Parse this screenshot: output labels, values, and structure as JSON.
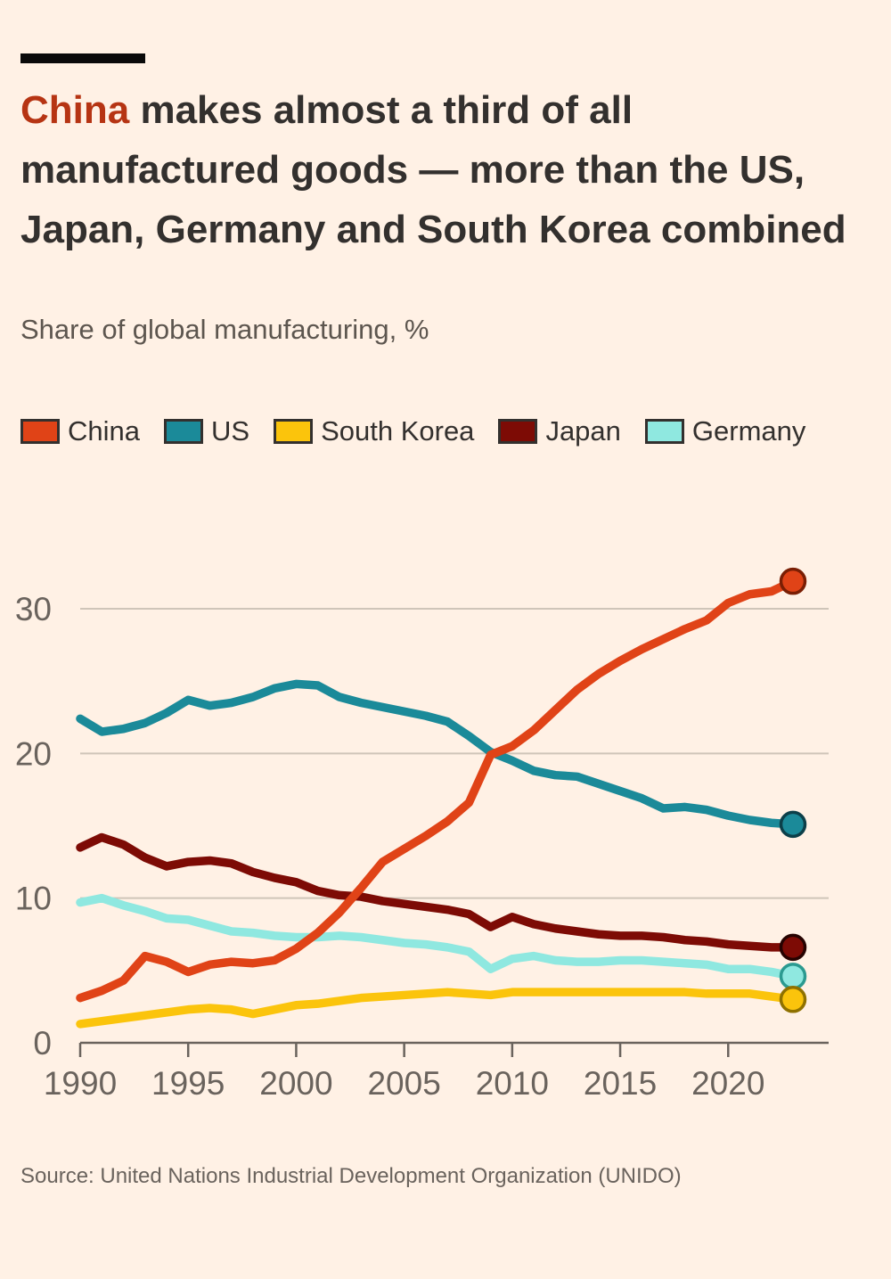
{
  "header": {
    "title_accent": "China",
    "title_rest": " makes almost a third of all manufactured goods — more than the US, Japan, Germany and South Korea combined",
    "subtitle": "Share of global manufacturing, %"
  },
  "footer": {
    "source": "Source: United Nations Industrial Development Organization (UNIDO)"
  },
  "colors": {
    "background": "#FFF1E5",
    "title_text": "#33302E",
    "title_accent": "#B63413",
    "subtitle_text": "#5D564F",
    "axis_text": "#6A635D",
    "gridline": "#CFC5B9",
    "axis_line": "#6A635D",
    "accent_bar": "#0A0A0A"
  },
  "chart_data": {
    "type": "line",
    "title": "China makes almost a third of all manufactured goods — more than the US, Japan, Germany and South Korea combined",
    "ylabel": "Share of global manufacturing, %",
    "xlabel": "",
    "xlim": [
      1990,
      2023
    ],
    "ylim": [
      0,
      33
    ],
    "grid": "horizontal",
    "legend_position": "top",
    "end_markers": true,
    "x_ticks": [
      1990,
      1995,
      2000,
      2005,
      2010,
      2015,
      2020
    ],
    "y_ticks": [
      0,
      10,
      20,
      30
    ],
    "x": [
      1990,
      1991,
      1992,
      1993,
      1994,
      1995,
      1996,
      1997,
      1998,
      1999,
      2000,
      2001,
      2002,
      2003,
      2004,
      2005,
      2006,
      2007,
      2008,
      2009,
      2010,
      2011,
      2012,
      2013,
      2014,
      2015,
      2016,
      2017,
      2018,
      2019,
      2020,
      2021,
      2022,
      2023
    ],
    "legend_order": [
      "China",
      "US",
      "South Korea",
      "Japan",
      "Germany"
    ],
    "series": [
      {
        "name": "Germany",
        "color": "#8FE8E0",
        "ring": "#2B9A90",
        "values": [
          9.7,
          10.0,
          9.5,
          9.1,
          8.6,
          8.5,
          8.1,
          7.7,
          7.6,
          7.4,
          7.3,
          7.3,
          7.4,
          7.3,
          7.1,
          6.9,
          6.8,
          6.6,
          6.3,
          5.1,
          5.8,
          6.0,
          5.7,
          5.6,
          5.6,
          5.7,
          5.7,
          5.6,
          5.5,
          5.4,
          5.1,
          5.1,
          4.9,
          4.6
        ]
      },
      {
        "name": "South Korea",
        "color": "#FBC40C",
        "ring": "#8F7100",
        "values": [
          1.3,
          1.5,
          1.7,
          1.9,
          2.1,
          2.3,
          2.4,
          2.3,
          2.0,
          2.3,
          2.6,
          2.7,
          2.9,
          3.1,
          3.2,
          3.3,
          3.4,
          3.5,
          3.4,
          3.3,
          3.5,
          3.5,
          3.5,
          3.5,
          3.5,
          3.5,
          3.5,
          3.5,
          3.5,
          3.4,
          3.4,
          3.4,
          3.2,
          3.0
        ]
      },
      {
        "name": "Japan",
        "color": "#7D0B05",
        "ring": "#260301",
        "values": [
          13.5,
          14.2,
          13.7,
          12.8,
          12.2,
          12.5,
          12.6,
          12.4,
          11.8,
          11.4,
          11.1,
          10.5,
          10.2,
          10.1,
          9.8,
          9.6,
          9.4,
          9.2,
          8.9,
          8.0,
          8.7,
          8.2,
          7.9,
          7.7,
          7.5,
          7.4,
          7.4,
          7.3,
          7.1,
          7.0,
          6.8,
          6.7,
          6.6,
          6.6
        ]
      },
      {
        "name": "US",
        "color": "#1B8A99",
        "ring": "#0C3F49",
        "values": [
          22.4,
          21.5,
          21.7,
          22.1,
          22.8,
          23.7,
          23.3,
          23.5,
          23.9,
          24.5,
          24.8,
          24.7,
          23.9,
          23.5,
          23.2,
          22.9,
          22.6,
          22.2,
          21.2,
          20.1,
          19.5,
          18.8,
          18.5,
          18.4,
          17.9,
          17.4,
          16.9,
          16.2,
          16.3,
          16.1,
          15.7,
          15.4,
          15.2,
          15.1
        ]
      },
      {
        "name": "China",
        "color": "#E04317",
        "ring": "#7A1E04",
        "values": [
          3.1,
          3.6,
          4.3,
          6.0,
          5.6,
          4.9,
          5.4,
          5.6,
          5.5,
          5.7,
          6.5,
          7.6,
          9.0,
          10.7,
          12.5,
          13.4,
          14.3,
          15.3,
          16.6,
          19.9,
          20.5,
          21.6,
          23.0,
          24.4,
          25.5,
          26.4,
          27.2,
          27.9,
          28.6,
          29.2,
          30.4,
          31.0,
          31.2,
          31.9
        ]
      }
    ]
  }
}
